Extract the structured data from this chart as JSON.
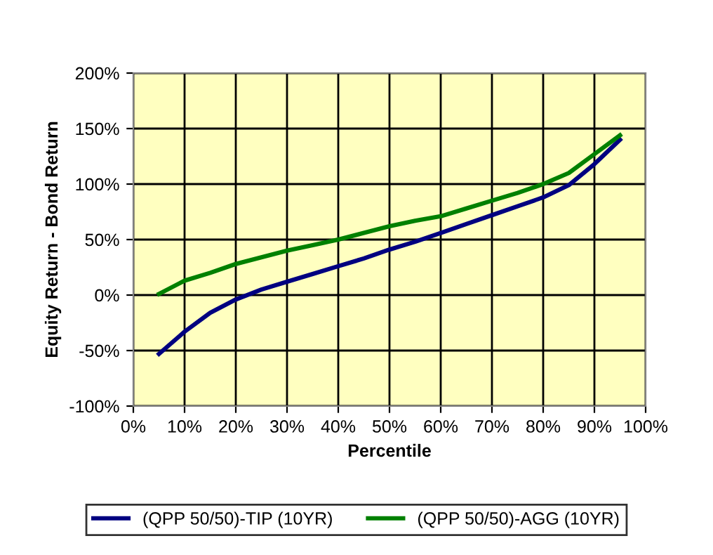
{
  "chart_data": {
    "type": "line",
    "xlabel": "Percentile",
    "ylabel": "Equity Return - Bond Return",
    "x": [
      5,
      10,
      15,
      20,
      25,
      30,
      35,
      40,
      45,
      50,
      55,
      60,
      65,
      70,
      75,
      80,
      85,
      90,
      95
    ],
    "series": [
      {
        "name": "(QPP 50/50)-TIP (10YR)",
        "color": "#000080",
        "values": [
          -53,
          -33,
          -16,
          -4,
          5,
          12,
          19,
          26,
          33,
          41,
          48,
          56,
          64,
          72,
          80,
          88,
          99,
          118,
          140
        ]
      },
      {
        "name": "(QPP 50/50)-AGG (10YR)",
        "color": "#008000",
        "values": [
          1,
          13,
          20,
          28,
          34,
          40,
          45,
          50,
          56,
          62,
          67,
          71,
          78,
          85,
          92,
          100,
          110,
          127,
          144
        ]
      }
    ],
    "xlim": [
      0,
      100
    ],
    "xticks": [
      {
        "value": 0,
        "label": "0%"
      },
      {
        "value": 10,
        "label": "10%"
      },
      {
        "value": 20,
        "label": "20%"
      },
      {
        "value": 30,
        "label": "30%"
      },
      {
        "value": 40,
        "label": "40%"
      },
      {
        "value": 50,
        "label": "50%"
      },
      {
        "value": 60,
        "label": "60%"
      },
      {
        "value": 70,
        "label": "70%"
      },
      {
        "value": 80,
        "label": "80%"
      },
      {
        "value": 90,
        "label": "90%"
      },
      {
        "value": 100,
        "label": "100%"
      }
    ],
    "ylim": [
      -100,
      200
    ],
    "yticks": [
      {
        "value": -100,
        "label": "-100%"
      },
      {
        "value": -50,
        "label": "-50%"
      },
      {
        "value": 0,
        "label": "0%"
      },
      {
        "value": 50,
        "label": "50%"
      },
      {
        "value": 100,
        "label": "100%"
      },
      {
        "value": 150,
        "label": "150%"
      },
      {
        "value": 200,
        "label": "200%"
      }
    ],
    "grid": true,
    "legend": "bottom",
    "marker": "none",
    "line_style": "solid"
  }
}
